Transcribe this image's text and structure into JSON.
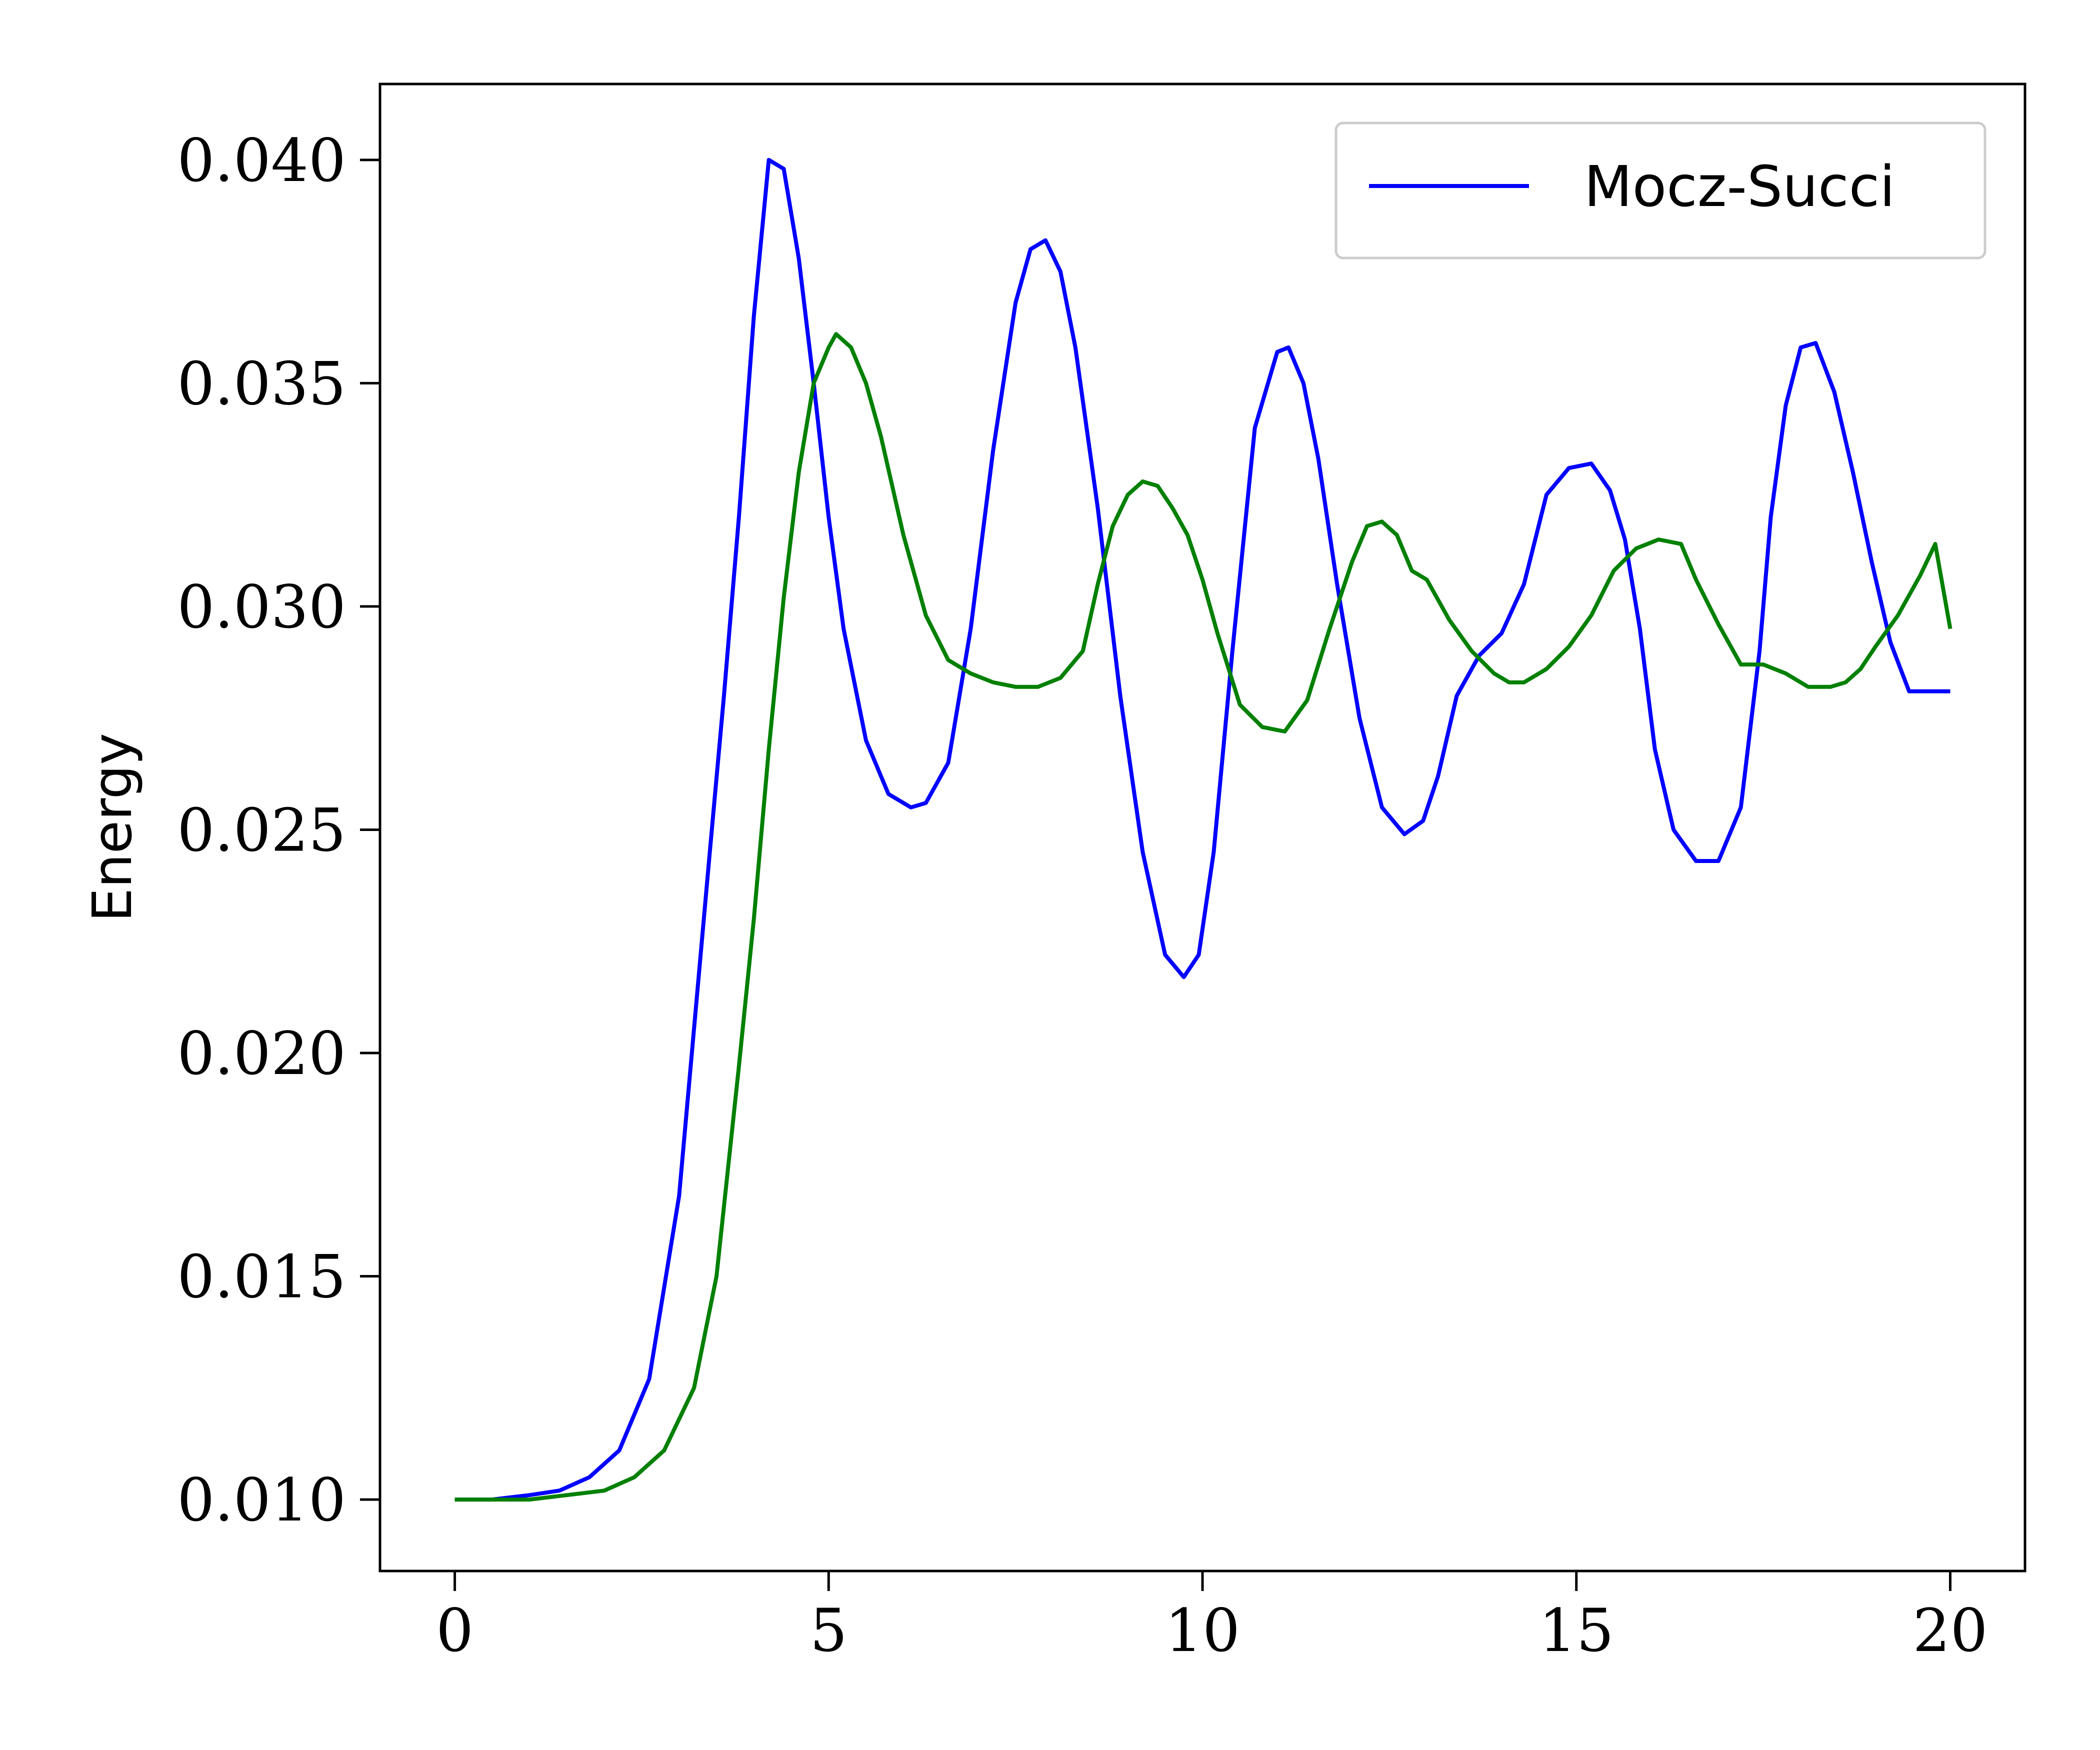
{
  "chart_data": {
    "type": "line",
    "title": "",
    "xlabel": "",
    "ylabel": "Energy",
    "xlim": [
      -1,
      21
    ],
    "ylim": [
      0.0084,
      0.0417
    ],
    "x_ticks": [
      0,
      5,
      10,
      15,
      20
    ],
    "x_tick_labels": [
      "0",
      "5",
      "10",
      "15",
      "20"
    ],
    "y_ticks": [
      0.01,
      0.015,
      0.02,
      0.025,
      0.03,
      0.035,
      0.04
    ],
    "y_tick_labels": [
      "0.010",
      "0.015",
      "0.020",
      "0.025",
      "0.030",
      "0.035",
      "0.040"
    ],
    "grid": false,
    "legend_position": "top-right",
    "series": [
      {
        "name": "Mocz-Succi",
        "color": "#0000ff",
        "in_legend": true,
        "x": [
          0,
          0.5,
          1.0,
          1.4,
          1.8,
          2.2,
          2.6,
          3.0,
          3.4,
          3.6,
          3.8,
          4.0,
          4.2,
          4.4,
          4.6,
          4.8,
          5.0,
          5.2,
          5.5,
          5.8,
          6.1,
          6.3,
          6.6,
          6.9,
          7.2,
          7.5,
          7.7,
          7.9,
          8.1,
          8.3,
          8.6,
          8.9,
          9.2,
          9.5,
          9.75,
          9.95,
          10.15,
          10.4,
          10.7,
          11.0,
          11.15,
          11.35,
          11.55,
          11.8,
          12.1,
          12.4,
          12.7,
          12.95,
          13.15,
          13.4,
          13.7,
          14.0,
          14.3,
          14.6,
          14.9,
          15.2,
          15.45,
          15.65,
          15.85,
          16.05,
          16.3,
          16.6,
          16.9,
          17.2,
          17.45,
          17.6,
          17.8,
          18.0,
          18.2,
          18.45,
          18.7,
          18.95,
          19.2,
          19.45,
          19.7,
          20.0
        ],
        "y": [
          0.01,
          0.01,
          0.0101,
          0.0102,
          0.0105,
          0.0111,
          0.0127,
          0.0168,
          0.0243,
          0.028,
          0.032,
          0.0365,
          0.04,
          0.0398,
          0.0378,
          0.035,
          0.032,
          0.0295,
          0.027,
          0.0258,
          0.0255,
          0.0256,
          0.0265,
          0.0295,
          0.0335,
          0.0368,
          0.038,
          0.0382,
          0.0375,
          0.0358,
          0.0322,
          0.028,
          0.0245,
          0.0222,
          0.0217,
          0.0222,
          0.0245,
          0.029,
          0.034,
          0.0357,
          0.0358,
          0.035,
          0.0333,
          0.0305,
          0.0275,
          0.0255,
          0.0249,
          0.0252,
          0.0262,
          0.028,
          0.0289,
          0.0294,
          0.0305,
          0.0325,
          0.0331,
          0.0332,
          0.0326,
          0.0315,
          0.0295,
          0.0268,
          0.025,
          0.0243,
          0.0243,
          0.0255,
          0.029,
          0.032,
          0.0345,
          0.0358,
          0.0359,
          0.0348,
          0.033,
          0.031,
          0.0292,
          0.0281,
          0.0281,
          0.0281
        ]
      },
      {
        "name": "",
        "color": "#008000",
        "in_legend": false,
        "x": [
          0,
          0.5,
          1.0,
          1.5,
          2.0,
          2.4,
          2.8,
          3.2,
          3.5,
          3.8,
          4.0,
          4.2,
          4.4,
          4.6,
          4.8,
          5.0,
          5.1,
          5.3,
          5.5,
          5.7,
          6.0,
          6.3,
          6.6,
          6.9,
          7.2,
          7.5,
          7.8,
          8.1,
          8.4,
          8.6,
          8.8,
          9.0,
          9.2,
          9.4,
          9.6,
          9.8,
          10.0,
          10.2,
          10.5,
          10.8,
          11.1,
          11.4,
          11.7,
          12.0,
          12.2,
          12.4,
          12.6,
          12.8,
          13.0,
          13.3,
          13.6,
          13.9,
          14.1,
          14.3,
          14.6,
          14.9,
          15.2,
          15.5,
          15.8,
          16.1,
          16.4,
          16.6,
          16.9,
          17.2,
          17.5,
          17.8,
          18.1,
          18.4,
          18.6,
          18.8,
          19.0,
          19.3,
          19.6,
          19.8,
          20.0
        ],
        "y": [
          0.01,
          0.01,
          0.01,
          0.0101,
          0.0102,
          0.0105,
          0.0111,
          0.0125,
          0.015,
          0.0197,
          0.023,
          0.0268,
          0.0302,
          0.033,
          0.035,
          0.0358,
          0.0361,
          0.0358,
          0.035,
          0.0338,
          0.0316,
          0.0298,
          0.0288,
          0.0285,
          0.0283,
          0.0282,
          0.0282,
          0.0284,
          0.029,
          0.0305,
          0.0318,
          0.0325,
          0.0328,
          0.0327,
          0.0322,
          0.0316,
          0.0306,
          0.0294,
          0.0278,
          0.0273,
          0.0272,
          0.0279,
          0.0295,
          0.031,
          0.0318,
          0.0319,
          0.0316,
          0.0308,
          0.0306,
          0.0297,
          0.029,
          0.0285,
          0.0283,
          0.0283,
          0.0286,
          0.0291,
          0.0298,
          0.0308,
          0.0313,
          0.0315,
          0.0314,
          0.0306,
          0.0296,
          0.0287,
          0.0287,
          0.0285,
          0.0282,
          0.0282,
          0.0283,
          0.0286,
          0.0291,
          0.0298,
          0.0307,
          0.0314,
          0.0295
        ]
      }
    ]
  }
}
